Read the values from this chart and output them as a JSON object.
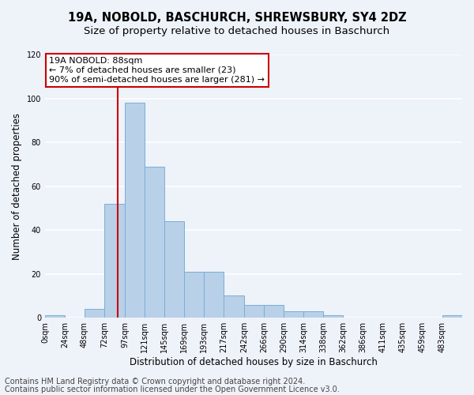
{
  "title_line1": "19A, NOBOLD, BASCHURCH, SHREWSBURY, SY4 2DZ",
  "title_line2": "Size of property relative to detached houses in Baschurch",
  "xlabel": "Distribution of detached houses by size in Baschurch",
  "ylabel": "Number of detached properties",
  "footer_line1": "Contains HM Land Registry data © Crown copyright and database right 2024.",
  "footer_line2": "Contains public sector information licensed under the Open Government Licence v3.0.",
  "bar_color": "#b8d0e8",
  "bar_edge_color": "#7aafd4",
  "annotation_box_text": "19A NOBOLD: 88sqm\n← 7% of detached houses are smaller (23)\n90% of semi-detached houses are larger (281) →",
  "annotation_box_color": "#ffffff",
  "annotation_box_edge_color": "#cc0000",
  "vline_x": 88,
  "vline_color": "#cc0000",
  "bin_edges": [
    0,
    24,
    48,
    72,
    97,
    121,
    145,
    169,
    193,
    217,
    242,
    266,
    290,
    314,
    338,
    362,
    386,
    411,
    435,
    459,
    483,
    507
  ],
  "bar_heights": [
    1,
    0,
    4,
    52,
    98,
    69,
    44,
    21,
    21,
    10,
    6,
    6,
    3,
    3,
    1,
    0,
    0,
    0,
    0,
    0,
    1
  ],
  "ylim": [
    0,
    120
  ],
  "yticks": [
    0,
    20,
    40,
    60,
    80,
    100,
    120
  ],
  "xtick_labels": [
    "0sqm",
    "24sqm",
    "48sqm",
    "72sqm",
    "97sqm",
    "121sqm",
    "145sqm",
    "169sqm",
    "193sqm",
    "217sqm",
    "242sqm",
    "266sqm",
    "290sqm",
    "314sqm",
    "338sqm",
    "362sqm",
    "386sqm",
    "411sqm",
    "435sqm",
    "459sqm",
    "483sqm"
  ],
  "background_color": "#eef2f9",
  "grid_color": "#ffffff",
  "title_fontsize": 10.5,
  "subtitle_fontsize": 9.5,
  "axis_label_fontsize": 8.5,
  "tick_fontsize": 7,
  "annotation_fontsize": 8,
  "footer_fontsize": 7
}
